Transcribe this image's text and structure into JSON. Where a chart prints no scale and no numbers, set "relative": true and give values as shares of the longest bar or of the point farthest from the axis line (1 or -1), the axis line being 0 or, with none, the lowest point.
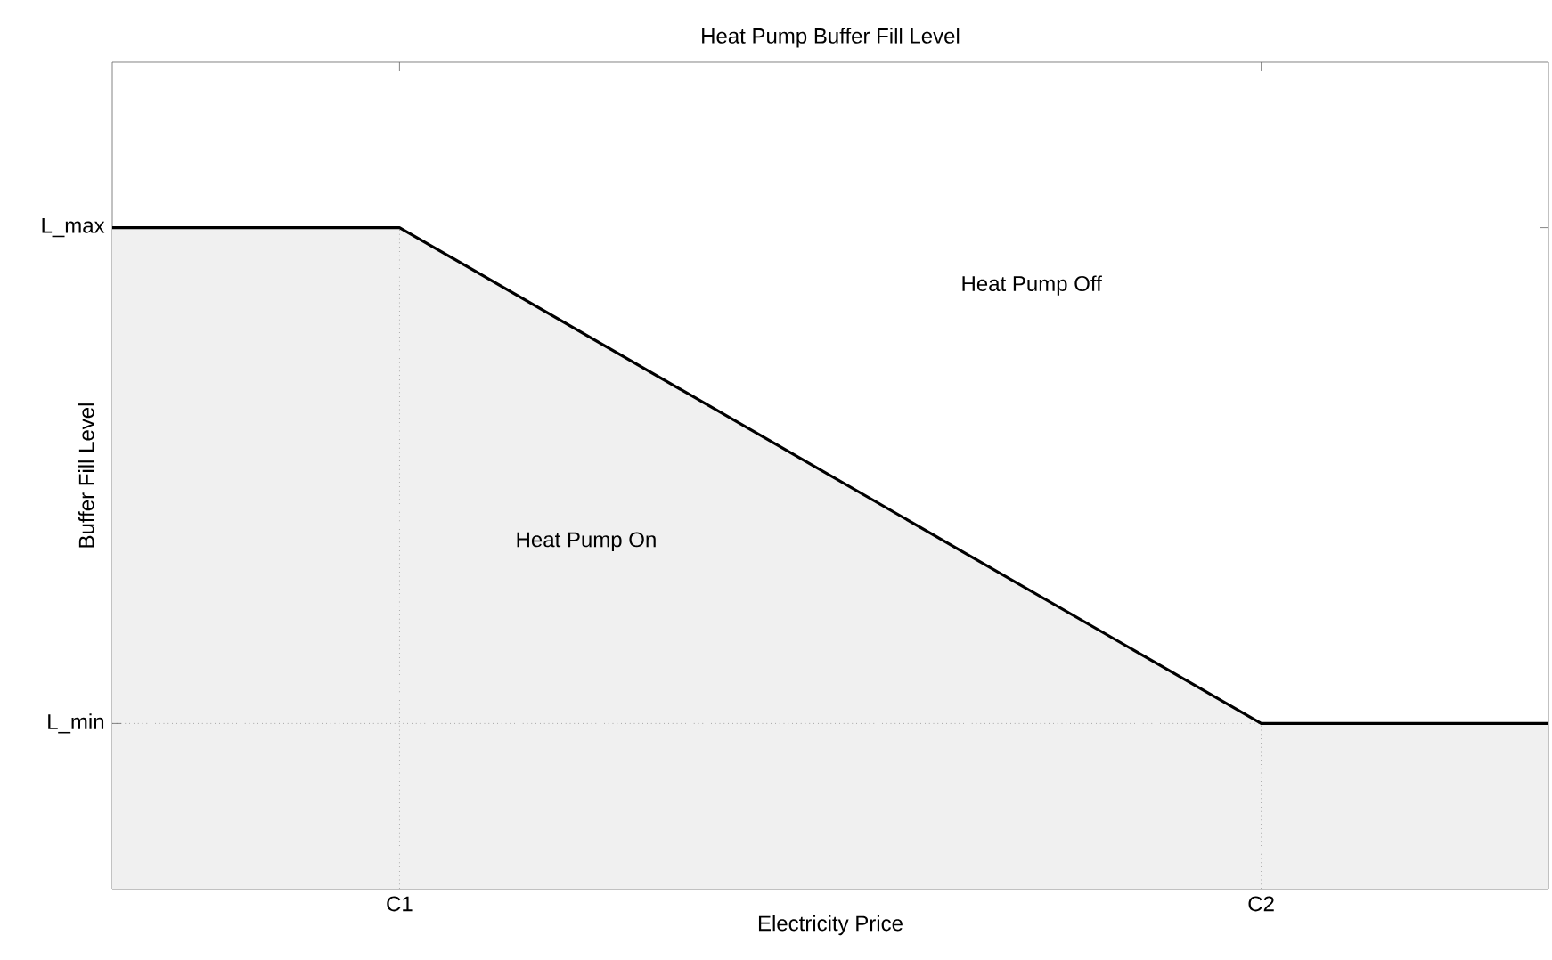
{
  "chart_data": {
    "type": "area",
    "title": "Heat Pump Buffer Fill Level",
    "xlabel": "Electricity Price",
    "ylabel": "Buffer Fill Level",
    "relative": true,
    "categories": [
      null,
      "C1",
      null,
      null,
      "C2",
      null
    ],
    "series": [
      {
        "color": "#000000",
        "values": [
          1,
          1,
          0.75,
          0.5,
          0.25,
          0.25
        ]
      }
    ],
    "ref_lines": [
      {
        "axis": "y",
        "value": 0.25,
        "label": "L_min",
        "line_style": "dotted",
        "color": "#808080"
      },
      {
        "axis": "y",
        "value": 1,
        "label": "L_max"
      }
    ],
    "annotations": [
      "Heat Pump Off",
      "Heat Pump On"
    ],
    "grid": "x",
    "marker": "none",
    "line_style": "solid"
  }
}
